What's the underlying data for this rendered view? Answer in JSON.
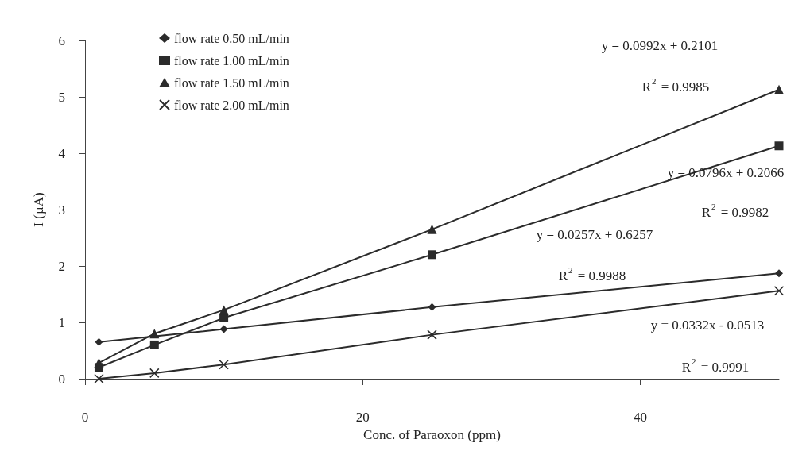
{
  "chart_data": {
    "type": "line",
    "xlabel": "Conc. of Paraoxon (ppm)",
    "ylabel": "I (µA)",
    "x": [
      1,
      5,
      10,
      25,
      50
    ],
    "series": [
      {
        "name": "flow rate 0.50 mL/min",
        "color": "#2b2b2b",
        "marker": "diamond",
        "values": [
          0.65,
          null,
          0.88,
          1.27,
          1.87
        ]
      },
      {
        "name": "flow rate 1.00 mL/min",
        "color": "#2b2b2b",
        "marker": "square",
        "values": [
          0.2,
          0.6,
          1.08,
          2.2,
          4.13
        ]
      },
      {
        "name": "flow rate 1.50 mL/min",
        "color": "#2b2b2b",
        "marker": "triangle",
        "values": [
          0.28,
          0.8,
          1.22,
          2.65,
          5.13
        ]
      },
      {
        "name": "flow rate 2.00 mL/min",
        "color": "#2b2b2b",
        "marker": "cross",
        "values": [
          0.0,
          0.1,
          0.25,
          0.78,
          1.56
        ]
      }
    ],
    "xlim": [
      0,
      50
    ],
    "xticks": [
      0,
      20,
      40
    ],
    "ylim": [
      0,
      6
    ],
    "yticks": [
      0,
      1,
      2,
      3,
      4,
      5,
      6
    ],
    "grid": false,
    "legend": "top left",
    "line_style": "solid",
    "annotations": [
      "y = 0.0992x + 0.2101",
      "R$^{2}$ = 0.9985",
      "y = 0.0796x + 0.2066",
      "R$^{2}$ = 0.9982",
      "y = 0.0257x + 0.6257",
      "R$^{2}$ = 0.9988",
      "y = 0.0332x - 0.0513",
      "R$^{2}$ = 0.9991"
    ]
  }
}
